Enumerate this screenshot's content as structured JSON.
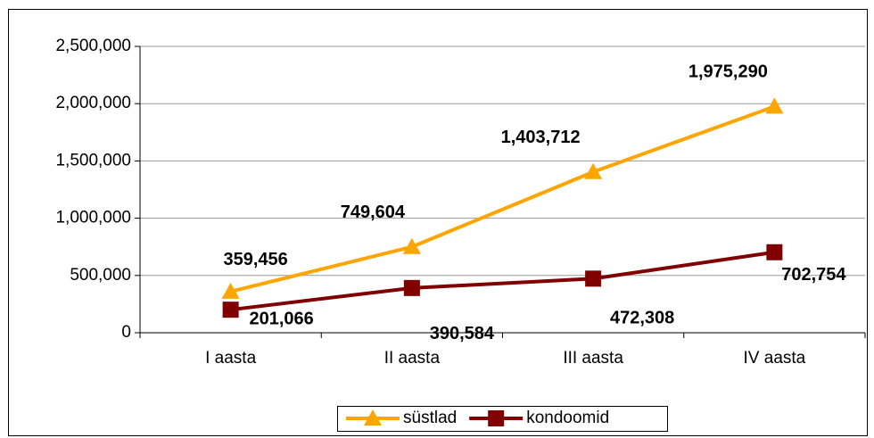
{
  "chart_data": {
    "type": "line",
    "categories": [
      "I aasta",
      "II aasta",
      "III aasta",
      "IV aasta"
    ],
    "series": [
      {
        "name": "süstlad",
        "color": "#ffa500",
        "values": [
          359456,
          749604,
          1403712,
          1975290
        ],
        "value_labels": [
          "359,456",
          "749,604",
          "1,403,712",
          "1,975,290"
        ]
      },
      {
        "name": "kondoomid",
        "color": "#800000",
        "values": [
          201066,
          390584,
          472308,
          702754
        ],
        "value_labels": [
          "201,066",
          "390,584",
          "472,308",
          "702,754"
        ]
      }
    ],
    "ylim": [
      0,
      2500000
    ],
    "yticks": [
      0,
      {
        "value": 500000,
        "label": "500,000"
      },
      {
        "value": 1000000,
        "label": "1,000,000"
      },
      {
        "value": 1500000,
        "label": "1,500,000"
      },
      {
        "value": 2000000,
        "label": "2,000,000"
      },
      {
        "value": 2500000,
        "label": "2,500,000"
      }
    ],
    "grid": true,
    "legend": "bottom"
  }
}
